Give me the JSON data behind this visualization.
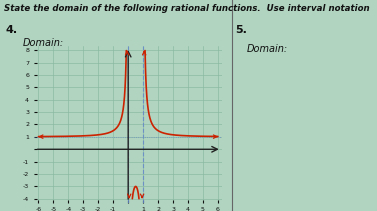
{
  "title": "State the domain of the following rational functions.  Use interval notation",
  "problem_number": "4.",
  "label_domain": "Domain:",
  "problem_number2": "5.",
  "label_domain2": "Domain:",
  "background_color": "#b0d4c0",
  "grid_color": "#88b8a0",
  "curve_color": "#cc2200",
  "asymptote_color": "#6688cc",
  "axis_color": "#222222",
  "text_color": "#111111",
  "xmin": -6,
  "xmax": 6,
  "ymin": -4,
  "ymax": 8,
  "xticks": [
    -6,
    -5,
    -4,
    -3,
    -2,
    -1,
    0,
    1,
    2,
    3,
    4,
    5,
    6
  ],
  "yticks": [
    -4,
    -3,
    -2,
    -1,
    0,
    1,
    2,
    3,
    4,
    5,
    6,
    7,
    8
  ],
  "vertical_asymptotes": [
    0,
    1
  ],
  "horizontal_asymptote": 1
}
